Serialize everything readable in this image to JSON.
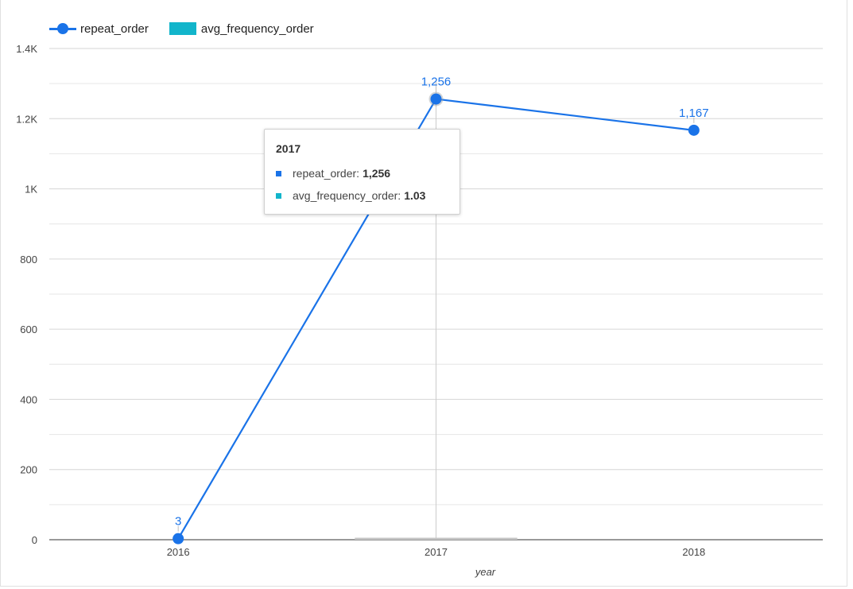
{
  "legend": {
    "series1": {
      "label": "repeat_order",
      "color": "#1a73e8"
    },
    "series2": {
      "label": "avg_frequency_order",
      "color": "#12b5cb"
    }
  },
  "tooltip": {
    "title": "2017",
    "rows": [
      {
        "label": "repeat_order:",
        "value": "1,256",
        "color": "#1a73e8"
      },
      {
        "label": "avg_frequency_order:",
        "value": "1.03",
        "color": "#12b5cb"
      }
    ]
  },
  "chart_data": {
    "type": "line",
    "title": "",
    "xlabel": "year",
    "ylabel": "",
    "categories": [
      "2016",
      "2017",
      "2018"
    ],
    "ylim": [
      0,
      1400
    ],
    "y_ticks": [
      {
        "value": 0,
        "label": "0"
      },
      {
        "value": 200,
        "label": "200"
      },
      {
        "value": 400,
        "label": "400"
      },
      {
        "value": 600,
        "label": "600"
      },
      {
        "value": 800,
        "label": "800"
      },
      {
        "value": 1000,
        "label": "1K"
      },
      {
        "value": 1200,
        "label": "1.2K"
      },
      {
        "value": 1400,
        "label": "1.4K"
      }
    ],
    "grid": true,
    "legend_position": "top-left",
    "series": [
      {
        "name": "repeat_order",
        "type": "line",
        "values": [
          3,
          1256,
          1167
        ],
        "data_labels": [
          "3",
          "1,256",
          "1,167"
        ],
        "color": "#1a73e8"
      },
      {
        "name": "avg_frequency_order",
        "type": "bar",
        "values": [
          null,
          1.03,
          null
        ],
        "color": "#12b5cb"
      }
    ],
    "hover": {
      "category": "2017"
    }
  }
}
